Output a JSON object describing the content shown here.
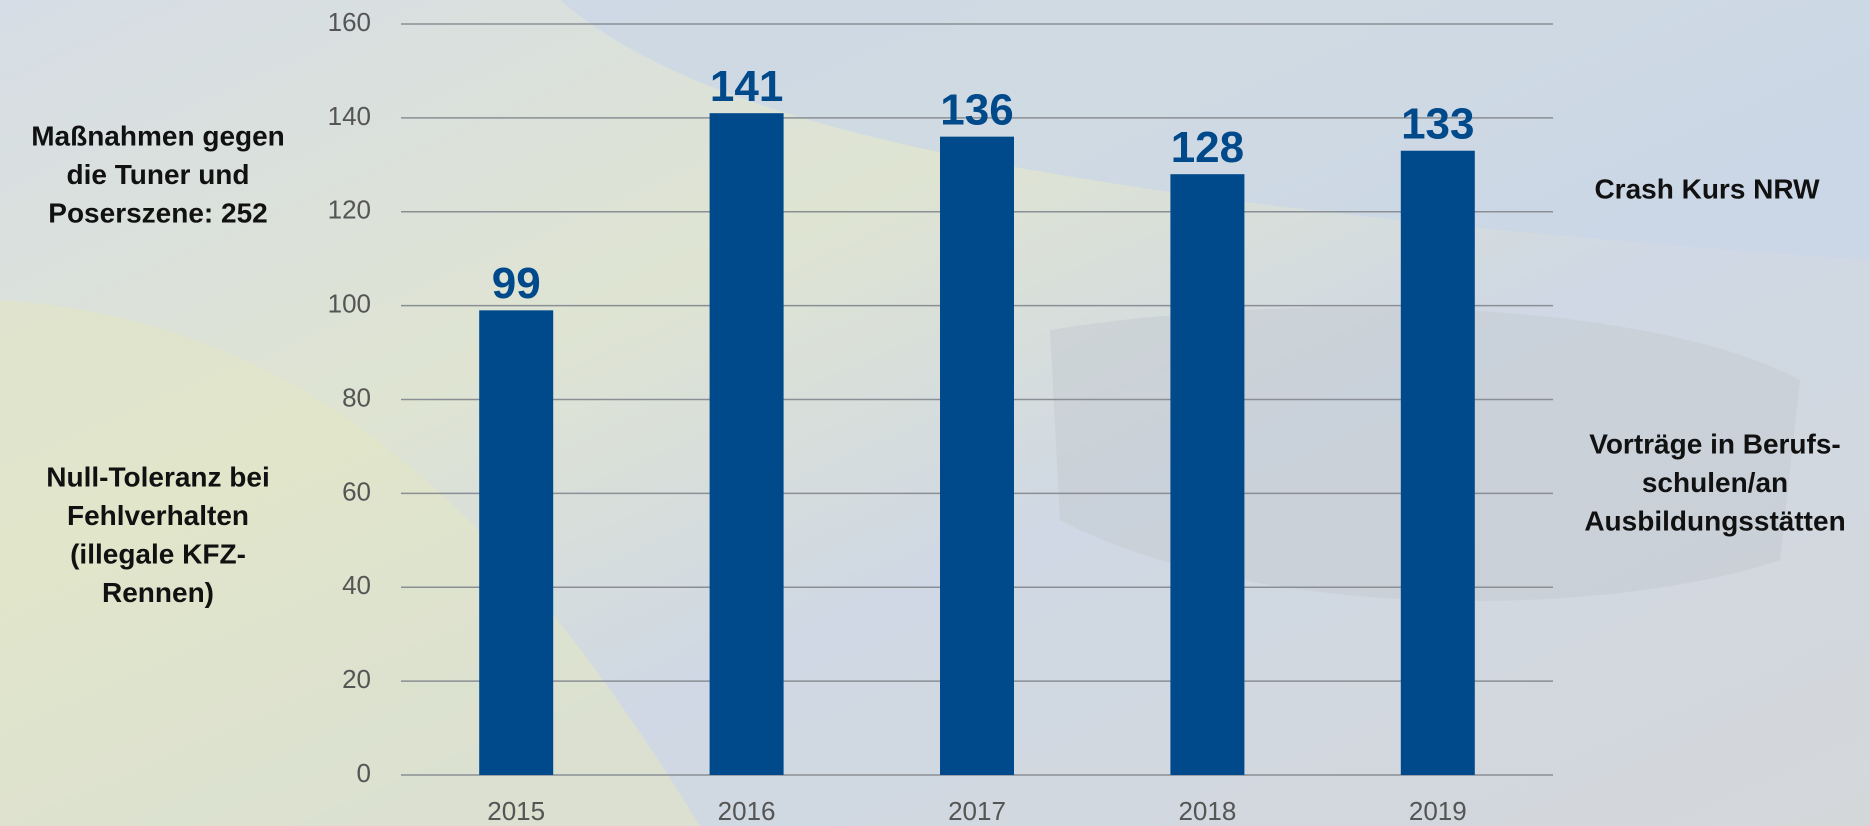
{
  "chart_data": {
    "type": "bar",
    "categories": [
      "2015",
      "2016",
      "2017",
      "2018",
      "2019"
    ],
    "values": [
      99,
      141,
      136,
      128,
      133
    ],
    "color": "#004a8b",
    "ylim": [
      0,
      160
    ],
    "yticks": [
      0,
      20,
      40,
      60,
      80,
      100,
      120,
      140,
      160
    ],
    "grid": true,
    "annotations": [
      [
        "Maßnahmen gegen",
        "die Tuner und",
        "Poserszene: 252"
      ],
      [
        "Null-Toleranz bei",
        "Fehlverhalten",
        "(illegale KFZ-",
        "Rennen)"
      ],
      [
        "Crash Kurs NRW"
      ],
      [
        "Vorträge in Berufs-",
        "schulen/an",
        "Ausbildungsstätten"
      ]
    ]
  }
}
